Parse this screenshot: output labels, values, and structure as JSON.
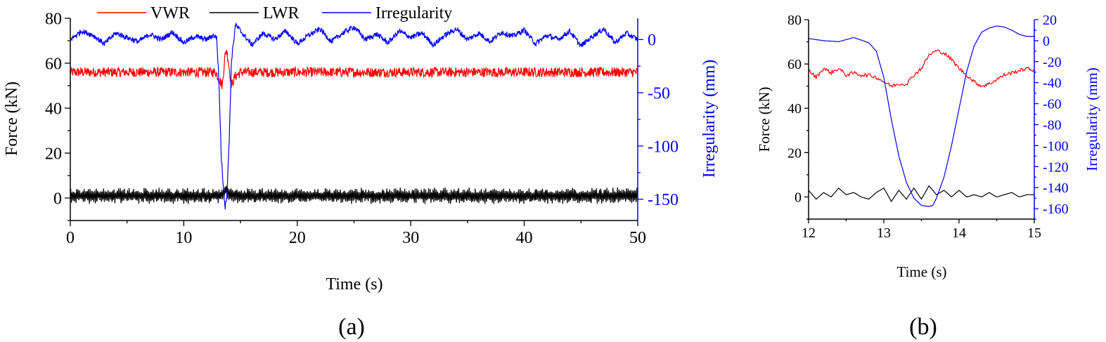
{
  "colors": {
    "vwr": "#ff0000",
    "lwr": "#000000",
    "irregularity": "#0000ff",
    "axis": "#000000"
  },
  "legend": [
    {
      "name": "VWR",
      "color": "#ff0000"
    },
    {
      "name": "LWR",
      "color": "#000000"
    },
    {
      "name": "Irregularity",
      "color": "#0000ff"
    }
  ],
  "panels": {
    "a": {
      "caption": "(a)"
    },
    "b": {
      "caption": "(b)"
    }
  },
  "chart_data": [
    {
      "type": "line",
      "panel": "(a)",
      "xlabel": "Time (s)",
      "ylabel": "Force (kN)",
      "y2label": "Irregularity (mm)",
      "xlim": [
        0,
        50
      ],
      "ylim": [
        -10,
        80
      ],
      "y2lim": [
        -170,
        20
      ],
      "xticks": [
        0,
        10,
        20,
        30,
        40,
        50
      ],
      "yticks": [
        0,
        20,
        40,
        60,
        80
      ],
      "y2ticks": [
        0,
        -50,
        -100,
        -150
      ],
      "grid": false,
      "legend_position": "top",
      "series": [
        {
          "name": "VWR",
          "axis": "left",
          "color": "#ff0000",
          "x": [
            0,
            5,
            10,
            12.8,
            13.2,
            13.4,
            13.6,
            13.75,
            13.9,
            14.2,
            14.5,
            15,
            20,
            25,
            30,
            35,
            40,
            45,
            50
          ],
          "y": [
            56,
            56,
            56,
            56,
            52,
            50,
            62,
            66,
            62,
            50,
            54,
            56,
            56,
            56,
            56,
            56,
            56,
            56,
            56
          ],
          "noise": 2.2
        },
        {
          "name": "LWR",
          "axis": "left",
          "color": "#000000",
          "x": [
            0,
            10,
            13,
            13.5,
            13.7,
            14,
            15,
            20,
            30,
            36.5,
            40,
            50
          ],
          "y": [
            1,
            1,
            1,
            2,
            4,
            2,
            1,
            1,
            1,
            1,
            1,
            1
          ],
          "noise": 2.5
        },
        {
          "name": "Irregularity",
          "axis": "right",
          "color": "#0000ff",
          "x": [
            0,
            1,
            2,
            3,
            4,
            5,
            6,
            7,
            8,
            9,
            10,
            11,
            12,
            12.6,
            12.9,
            13.1,
            13.3,
            13.5,
            13.65,
            13.8,
            14.0,
            14.2,
            14.55,
            15,
            16,
            17,
            18,
            19,
            20,
            21,
            22,
            23,
            24,
            25,
            26,
            27,
            28,
            29,
            30,
            31,
            32,
            33,
            34,
            35,
            36,
            37,
            38,
            39,
            40,
            41,
            42,
            43,
            44,
            45,
            46,
            47,
            48,
            49,
            50
          ],
          "y": [
            0,
            8,
            4,
            -4,
            6,
            2,
            -2,
            5,
            0,
            7,
            -3,
            3,
            0,
            4,
            2,
            -40,
            -110,
            -140,
            -158,
            -145,
            -95,
            -20,
            14,
            8,
            -5,
            6,
            0,
            8,
            -4,
            4,
            10,
            -2,
            6,
            12,
            0,
            5,
            -3,
            8,
            2,
            6,
            -5,
            4,
            10,
            0,
            6,
            -2,
            7,
            3,
            9,
            -4,
            4,
            0,
            8,
            -6,
            3,
            10,
            -3,
            6,
            0
          ],
          "noise": 2.5
        }
      ]
    },
    {
      "type": "line",
      "panel": "(b)",
      "xlabel": "Time (s)",
      "ylabel": "Force (kN)",
      "y2label": "Irregularity (mm)",
      "xlim": [
        12,
        15
      ],
      "ylim": [
        -10,
        80
      ],
      "y2lim": [
        -170,
        20
      ],
      "xticks": [
        12,
        13,
        14,
        15
      ],
      "yticks": [
        0,
        20,
        40,
        60,
        80
      ],
      "y2ticks": [
        20,
        0,
        -20,
        -40,
        -60,
        -80,
        -100,
        -120,
        -140,
        -160
      ],
      "grid": false,
      "series": [
        {
          "name": "VWR",
          "axis": "left",
          "color": "#ff0000",
          "x": [
            12,
            12.1,
            12.2,
            12.3,
            12.4,
            12.5,
            12.6,
            12.7,
            12.8,
            12.9,
            13.0,
            13.1,
            13.2,
            13.3,
            13.4,
            13.5,
            13.6,
            13.7,
            13.8,
            13.9,
            14.0,
            14.1,
            14.2,
            14.3,
            14.4,
            14.5,
            14.6,
            14.7,
            14.8,
            14.9,
            15.0
          ],
          "y": [
            57,
            54,
            58,
            56,
            58,
            55,
            56,
            55,
            55,
            54,
            52,
            50,
            51,
            51,
            55,
            58,
            64,
            66,
            65,
            62,
            58,
            55,
            52,
            50,
            51,
            53,
            55,
            56,
            57,
            58,
            57
          ],
          "noise": 0.8
        },
        {
          "name": "LWR",
          "axis": "left",
          "color": "#000000",
          "x": [
            12,
            12.1,
            12.2,
            12.3,
            12.4,
            12.5,
            12.6,
            12.7,
            12.8,
            12.9,
            13.0,
            13.1,
            13.2,
            13.3,
            13.4,
            13.5,
            13.6,
            13.7,
            13.8,
            13.9,
            14.0,
            14.1,
            14.2,
            14.3,
            14.4,
            14.5,
            14.6,
            14.7,
            14.8,
            14.9,
            15.0
          ],
          "y": [
            3,
            -1,
            2,
            0,
            4,
            1,
            2,
            0,
            -1,
            2,
            4,
            -2,
            3,
            -1,
            4,
            -1,
            5,
            1,
            3,
            0,
            3,
            0,
            1,
            0,
            2,
            0,
            1,
            2,
            0,
            1,
            1
          ],
          "noise": 0
        },
        {
          "name": "Irregularity",
          "axis": "right",
          "color": "#0000ff",
          "x": [
            12,
            12.2,
            12.4,
            12.6,
            12.8,
            12.9,
            13.0,
            13.1,
            13.2,
            13.3,
            13.4,
            13.5,
            13.6,
            13.65,
            13.7,
            13.8,
            13.9,
            14.0,
            14.1,
            14.2,
            14.3,
            14.4,
            14.5,
            14.6,
            14.7,
            14.8,
            14.9,
            15.0
          ],
          "y": [
            2,
            0,
            -1,
            3,
            -2,
            -10,
            -35,
            -75,
            -110,
            -135,
            -150,
            -157,
            -158,
            -157,
            -150,
            -130,
            -100,
            -65,
            -30,
            -5,
            8,
            12,
            14,
            13,
            10,
            6,
            4,
            4
          ],
          "noise": 0
        }
      ]
    }
  ]
}
